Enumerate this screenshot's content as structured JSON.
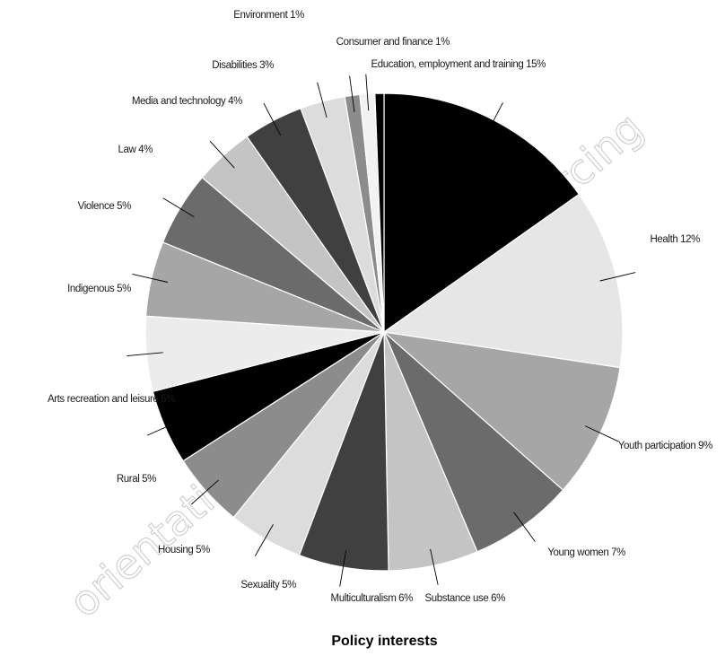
{
  "chart_data": {
    "type": "pie",
    "title": "Policy interests",
    "start_angle_deg": 0,
    "direction": "clockwise",
    "slices": [
      {
        "label": "Education, employment and training 15%",
        "value": 15,
        "color": "#000000"
      },
      {
        "label": "Health 12%",
        "value": 12,
        "color": "#e6e6e6"
      },
      {
        "label": "Youth participation 9%",
        "value": 9,
        "color": "#a6a6a6"
      },
      {
        "label": "Young women 7%",
        "value": 7,
        "color": "#6b6b6b"
      },
      {
        "label": "Substance use 6%",
        "value": 6,
        "color": "#c4c4c4"
      },
      {
        "label": "Multiculturalism 6%",
        "value": 6,
        "color": "#404040"
      },
      {
        "label": "Sexuality 5%",
        "value": 5,
        "color": "#dcdcdc"
      },
      {
        "label": "Housing 5%",
        "value": 5,
        "color": "#8c8c8c"
      },
      {
        "label": "Rural 5%",
        "value": 5,
        "color": "#000000"
      },
      {
        "label": "Arts recreation and leisure 5%",
        "value": 5,
        "color": "#ececec"
      },
      {
        "label": "Indigenous 5%",
        "value": 5,
        "color": "#a6a6a6"
      },
      {
        "label": "Violence 5%",
        "value": 5,
        "color": "#6b6b6b"
      },
      {
        "label": "Law 4%",
        "value": 4,
        "color": "#c4c4c4"
      },
      {
        "label": "Media and technology 4%",
        "value": 4,
        "color": "#404040"
      },
      {
        "label": "Disabilities 3%",
        "value": 3,
        "color": "#dcdcdc"
      },
      {
        "label": "Environment 1%",
        "value": 1,
        "color": "#8c8c8c"
      },
      {
        "label": "Consumer and finance 1%",
        "value": 1,
        "color": "#f2f2f2"
      },
      {
        "label": "",
        "value": 0.6,
        "color": "#000000"
      }
    ]
  },
  "watermark": "orientation + diversity + resourcing",
  "watermark_color": "#c8c8c8"
}
